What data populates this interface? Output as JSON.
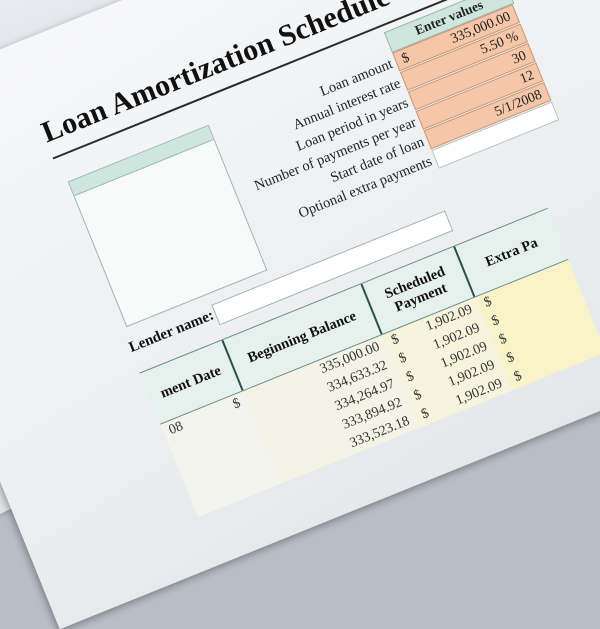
{
  "document": {
    "title": "Loan Amortization Schedule",
    "enter_values_header": "Enter values",
    "inputs": [
      {
        "label": "Loan amount",
        "lead": "$",
        "value": "335,000.00"
      },
      {
        "label": "Annual interest rate",
        "lead": "",
        "value": "5.50  %"
      },
      {
        "label": "Loan period in years",
        "lead": "",
        "value": "30"
      },
      {
        "label": "Number of payments per year",
        "lead": "",
        "value": "12"
      },
      {
        "label": "Start date of loan",
        "lead": "",
        "value": "5/1/2008"
      },
      {
        "label": "Optional extra payments",
        "lead": "",
        "value": ""
      }
    ],
    "lender_label": "Lender name:",
    "table": {
      "headers": [
        "ment Date",
        "Beginning Balance",
        "Scheduled Payment",
        "Extra Pa"
      ],
      "rows": [
        {
          "date": "08",
          "date_lead": "$",
          "balance": "335,000.00",
          "bal_lead": "$",
          "payment": "1,902.09",
          "pay_lead": "$",
          "extra": ""
        },
        {
          "date": "",
          "date_lead": "",
          "balance": "334,633.32",
          "bal_lead": "$",
          "payment": "1,902.09",
          "pay_lead": "$",
          "extra": ""
        },
        {
          "date": "",
          "date_lead": "",
          "balance": "334,264.97",
          "bal_lead": "$",
          "payment": "1,902.09",
          "pay_lead": "$",
          "extra": ""
        },
        {
          "date": "",
          "date_lead": "",
          "balance": "333,894.92",
          "bal_lead": "$",
          "payment": "1,902.09",
          "pay_lead": "$",
          "extra": ""
        },
        {
          "date": "",
          "date_lead": "",
          "balance": "333,523.18",
          "bal_lead": "$",
          "payment": "1,902.09",
          "pay_lead": "$",
          "extra": ""
        }
      ]
    }
  },
  "colors": {
    "input_cell": "#f5c6a8",
    "header_green": "#cfe6df",
    "payment_column": "#f6f4dc",
    "extra_column": "#f8f3c9"
  }
}
